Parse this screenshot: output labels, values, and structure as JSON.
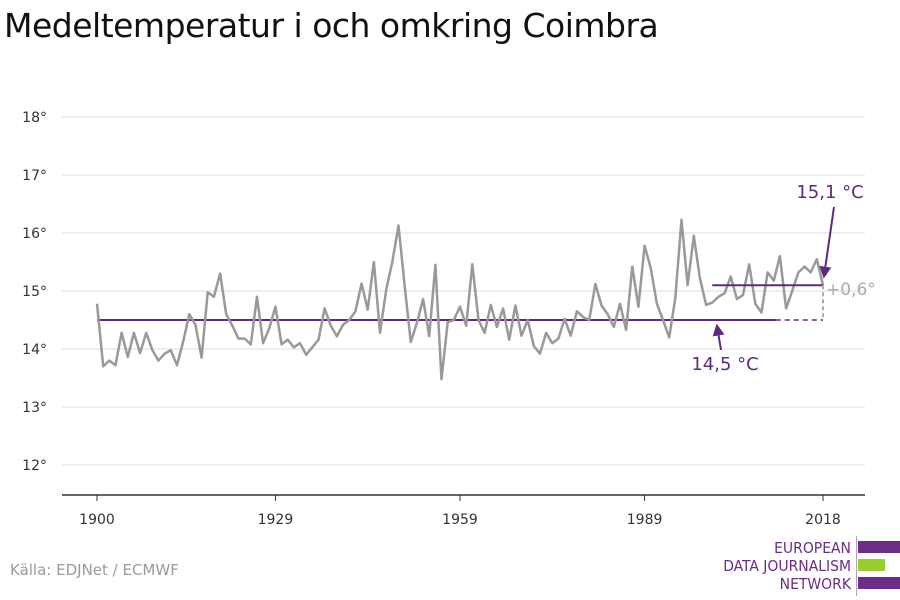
{
  "title": "Medeltemperatur i och omkring Coimbra",
  "source": "Källa: EDJNet / ECMWF",
  "logo": {
    "line1": "EUROPEAN",
    "line2": "DATA JOURNALISM",
    "line3": "NETWORK",
    "colors": {
      "purple": "#6b2d86",
      "green": "#99cc33"
    }
  },
  "colors": {
    "series": "#999999",
    "average": "#5e2a7e",
    "diff": "#aaaaaa",
    "grid": "#dddddd",
    "axis": "#333333"
  },
  "chart_data": {
    "type": "line",
    "x_ticks": [
      1900,
      1929,
      1959,
      1989,
      2018
    ],
    "y_ticks": [
      12,
      13,
      14,
      15,
      16,
      17,
      18
    ],
    "y_tick_labels": [
      "12°",
      "13°",
      "14°",
      "15°",
      "16°",
      "17°",
      "18°"
    ],
    "xlim": [
      1900,
      2018
    ],
    "ylim": [
      11.5,
      18
    ],
    "grid": true,
    "series": [
      {
        "x": [
          1900,
          1901,
          1902,
          1903,
          1904,
          1905,
          1906,
          1907,
          1908,
          1909,
          1910,
          1911,
          1912,
          1913,
          1914,
          1915,
          1916,
          1917,
          1918,
          1919,
          1920,
          1921,
          1922,
          1923,
          1924,
          1925,
          1926,
          1927,
          1928,
          1929,
          1930,
          1931,
          1932,
          1933,
          1934,
          1935,
          1936,
          1937,
          1938,
          1939,
          1940,
          1941,
          1942,
          1943,
          1944,
          1945,
          1946,
          1947,
          1948,
          1949,
          1950,
          1951,
          1952,
          1953,
          1954,
          1955,
          1956,
          1957,
          1958,
          1959,
          1960,
          1961,
          1962,
          1963,
          1964,
          1965,
          1966,
          1967,
          1968,
          1969,
          1970,
          1971,
          1972,
          1973,
          1974,
          1975,
          1976,
          1977,
          1978,
          1979,
          1980,
          1981,
          1982,
          1983,
          1984,
          1985,
          1986,
          1987,
          1988,
          1989,
          1990,
          1991,
          1992,
          1993,
          1994,
          1995,
          1996,
          1997,
          1998,
          1999,
          2000,
          2001,
          2002,
          2003,
          2004,
          2005,
          2006,
          2007,
          2008,
          2009,
          2010,
          2011,
          2012,
          2013,
          2014,
          2015,
          2016,
          2017,
          2018
        ],
        "values": [
          14.78,
          13.7,
          13.8,
          13.72,
          14.28,
          13.86,
          14.28,
          13.93,
          14.28,
          13.98,
          13.8,
          13.92,
          13.98,
          13.72,
          14.12,
          14.6,
          14.42,
          13.85,
          14.98,
          14.9,
          15.3,
          14.6,
          14.4,
          14.18,
          14.18,
          14.08,
          14.9,
          14.1,
          14.36,
          14.73,
          14.08,
          14.16,
          14.03,
          14.1,
          13.9,
          14.03,
          14.16,
          14.7,
          14.4,
          14.22,
          14.42,
          14.5,
          14.65,
          15.13,
          14.68,
          15.5,
          14.28,
          15.02,
          15.5,
          16.13,
          15.1,
          14.12,
          14.45,
          14.86,
          14.22,
          15.45,
          13.48,
          14.46,
          14.5,
          14.73,
          14.4,
          15.46,
          14.5,
          14.28,
          14.76,
          14.38,
          14.7,
          14.16,
          14.75,
          14.23,
          14.5,
          14.05,
          13.92,
          14.28,
          14.1,
          14.18,
          14.52,
          14.23,
          14.65,
          14.55,
          14.5,
          15.12,
          14.75,
          14.6,
          14.38,
          14.78,
          14.33,
          15.42,
          14.73,
          15.78,
          15.4,
          14.78,
          14.5,
          14.2,
          14.88,
          16.23,
          15.1,
          15.95,
          15.22,
          14.76,
          14.8,
          14.9,
          14.96,
          15.25,
          14.86,
          14.93,
          15.46,
          14.78,
          14.63,
          15.32,
          15.18,
          15.6,
          14.7,
          15.0,
          15.32,
          15.42,
          15.32,
          15.55,
          15.1
        ]
      }
    ],
    "baseline": {
      "value": 14.5,
      "from": 1900,
      "to": 2010,
      "label": "14,5 °C"
    },
    "recent": {
      "value": 15.1,
      "from": 2000,
      "to": 2018,
      "label": "15,1 °C"
    },
    "difference_label": "+0,6°"
  }
}
